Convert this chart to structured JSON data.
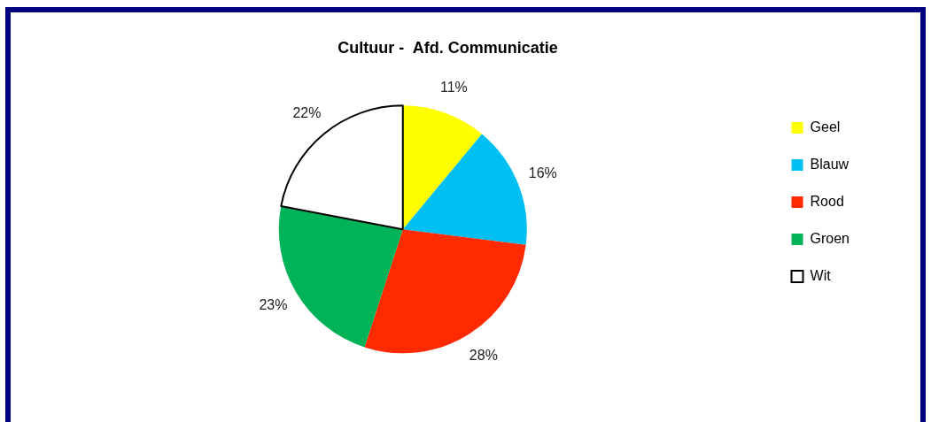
{
  "chart_data": {
    "type": "pie",
    "title": "Cultuur -  Afd. Communicatie",
    "categories": [
      "Geel",
      "Blauw",
      "Rood",
      "Groen",
      "Wit"
    ],
    "values": [
      11,
      16,
      28,
      23,
      22
    ],
    "colors": [
      "#ffff00",
      "#00bff3",
      "#ff2a00",
      "#00b359",
      "#ffffff"
    ],
    "value_labels": [
      "11%",
      "16%",
      "28%",
      "23%",
      "22%"
    ],
    "legend": "right"
  }
}
